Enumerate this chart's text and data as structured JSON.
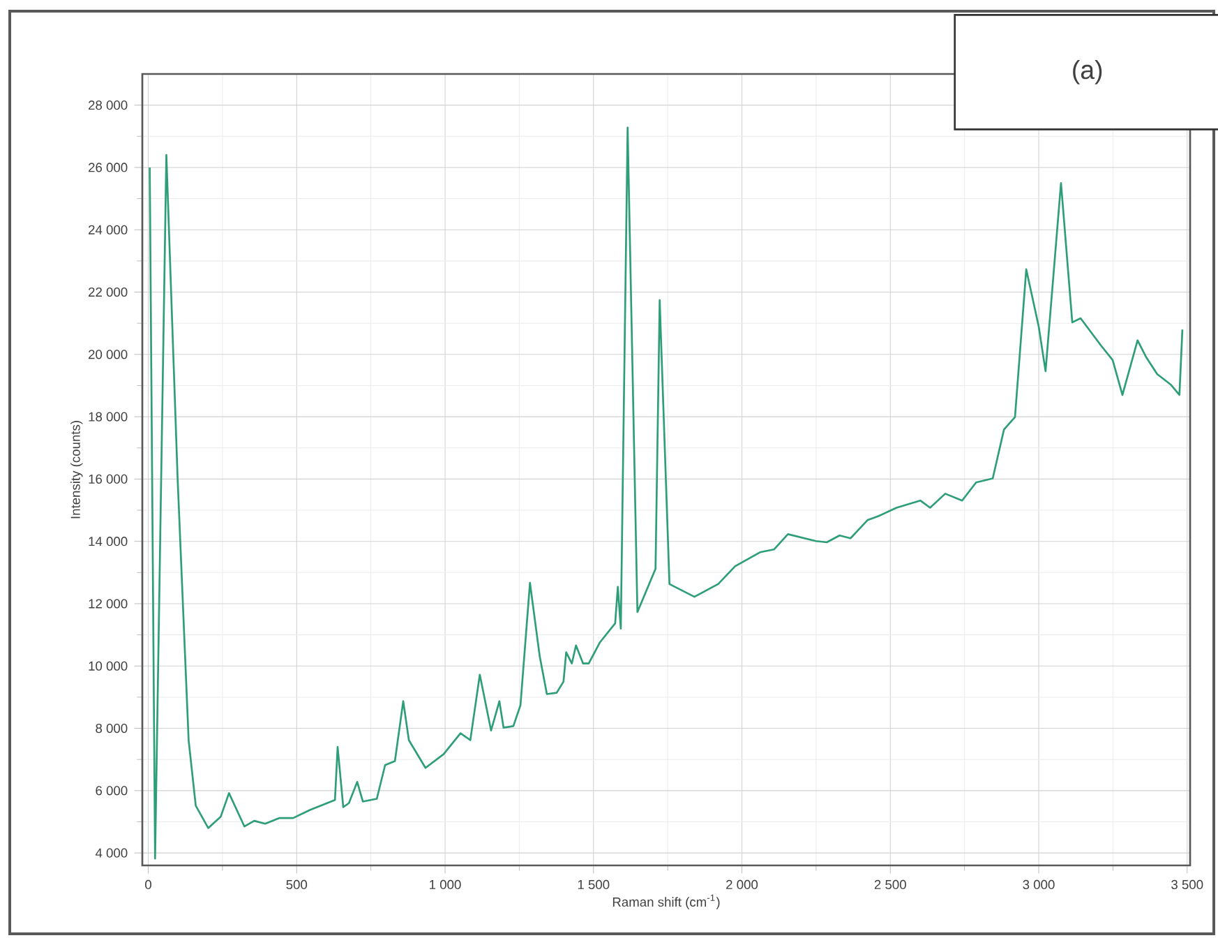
{
  "chart_data": {
    "type": "line",
    "xlabel": "Raman shift (cm$^{-1}$)",
    "ylabel": "Intensity (counts)",
    "annotations": [
      "(a)"
    ],
    "xlim": [
      -20,
      3510
    ],
    "ylim": [
      3600,
      29000
    ],
    "xticks": [
      0,
      500,
      {
        "value": 1000,
        "label": "1 000"
      },
      {
        "value": 1500,
        "label": "1 500"
      },
      {
        "value": 2000,
        "label": "2 000"
      },
      {
        "value": 2500,
        "label": "2 500"
      },
      {
        "value": 3000,
        "label": "3 000"
      },
      {
        "value": 3500,
        "label": "3 500"
      }
    ],
    "yticks": [
      {
        "value": 4000,
        "label": "4 000"
      },
      {
        "value": 6000,
        "label": "6 000"
      },
      {
        "value": 8000,
        "label": "8 000"
      },
      {
        "value": 10000,
        "label": "10 000"
      },
      {
        "value": 12000,
        "label": "12 000"
      },
      {
        "value": 14000,
        "label": "14 000"
      },
      {
        "value": 16000,
        "label": "16 000"
      },
      {
        "value": 18000,
        "label": "18 000"
      },
      {
        "value": 20000,
        "label": "20 000"
      },
      {
        "value": 22000,
        "label": "22 000"
      },
      {
        "value": 24000,
        "label": "24 000"
      },
      {
        "value": 26000,
        "label": "26 000"
      },
      {
        "value": 28000,
        "label": "28 000"
      }
    ],
    "grid": true,
    "x": [
      5,
      23,
      61,
      99,
      136,
      160,
      202,
      244,
      272,
      324,
      357,
      394,
      441,
      488,
      545,
      629,
      638,
      657,
      676,
      704,
      723,
      770,
      798,
      831,
      859,
      878,
      934,
      995,
      1052,
      1085,
      1117,
      1155,
      1183,
      1197,
      1230,
      1254,
      1286,
      1319,
      1343,
      1376,
      1399,
      1408,
      1427,
      1441,
      1465,
      1484,
      1521,
      1573,
      1582,
      1592,
      1615,
      1648,
      1709,
      1723,
      1756,
      1840,
      1920,
      1977,
      2061,
      2108,
      2155,
      2249,
      2286,
      2329,
      2366,
      2423,
      2460,
      2521,
      2601,
      2634,
      2685,
      2742,
      2789,
      2845,
      2883,
      2920,
      2958,
      3000,
      3023,
      3075,
      3113,
      3141,
      3211,
      3249,
      3282,
      3333,
      3362,
      3399,
      3446,
      3474,
      3484
    ],
    "series": [
      {
        "color": "#2e9e78",
        "values": [
          26000,
          3820,
          26400,
          16000,
          7620,
          5520,
          4800,
          5160,
          5920,
          4850,
          5030,
          4940,
          5120,
          5120,
          5380,
          5700,
          7400,
          5470,
          5600,
          6280,
          5650,
          5740,
          6820,
          6950,
          8870,
          7620,
          6730,
          7170,
          7840,
          7620,
          9720,
          7930,
          8870,
          8020,
          8070,
          8740,
          12670,
          10300,
          9100,
          9140,
          9500,
          10440,
          10080,
          10660,
          10080,
          10080,
          10750,
          11370,
          12540,
          11200,
          27280,
          11730,
          13120,
          21740,
          12630,
          12220,
          12630,
          13200,
          13650,
          13740,
          14230,
          14010,
          13970,
          14190,
          14100,
          14680,
          14810,
          15080,
          15310,
          15080,
          15530,
          15310,
          15890,
          16020,
          17590,
          17990,
          22730,
          20890,
          19460,
          25500,
          21030,
          21160,
          20270,
          19820,
          18700,
          20450,
          19910,
          19370,
          19020,
          18700,
          20800
        ]
      }
    ]
  }
}
